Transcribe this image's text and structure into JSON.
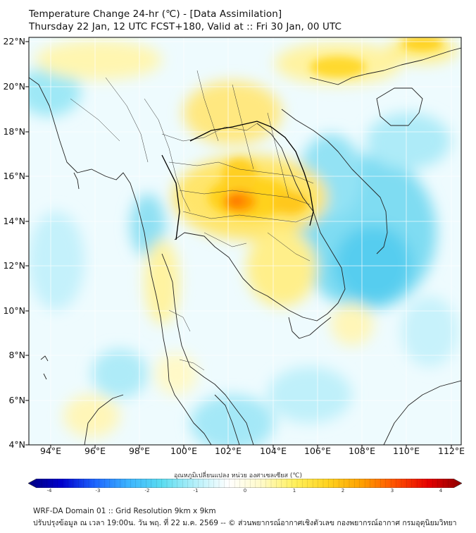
{
  "header": {
    "title_line1": "Temperature Change 24-hr (℃) - [Data Assimilation]",
    "title_line2": "Thursday 22 Jan, 12 UTC FCST+180, Valid at :: Fri 30 Jan, 00 UTC"
  },
  "map": {
    "lat_labels": [
      "22°N",
      "20°N",
      "18°N",
      "16°N",
      "14°N",
      "12°N",
      "10°N",
      "8°N",
      "6°N",
      "4°N"
    ],
    "lon_labels": [
      "94°E",
      "96°E",
      "98°E",
      "100°E",
      "102°E",
      "104°E",
      "106°E",
      "108°E",
      "110°E",
      "112°E"
    ],
    "lat_range": [
      4,
      22
    ],
    "lon_range": [
      93,
      112.5
    ],
    "grid": true
  },
  "colorbar": {
    "title": "อุณหภูมิเปลี่ยนแปลง หน่วย องศาเซลเซียส (℃)",
    "ticks": [
      "-4",
      "-3",
      "-2",
      "-1",
      "0",
      "1",
      "2",
      "3",
      "4"
    ],
    "min": -4,
    "max": 4,
    "colors": [
      "#000080",
      "#0000cd",
      "#1e66ff",
      "#3cb4ff",
      "#5adcf0",
      "#b4f0fa",
      "#ffffff",
      "#fffac8",
      "#fff05a",
      "#ffd21e",
      "#ffa000",
      "#ff5000",
      "#e60000",
      "#8b0000"
    ]
  },
  "footer": {
    "line1": "WRF-DA Domain 01 :: Grid Resolution 9km x 9km",
    "line2": "ปรับปรุงข้อมูล ณ เวลา 19:00น. วัน พฤ. ที่ 22 ม.ค. 2569 -- © ส่วนพยากรณ์อากาศเชิงตัวเลข กองพยากรณ์อากาศ กรมอุตุนิยมวิทยา"
  }
}
